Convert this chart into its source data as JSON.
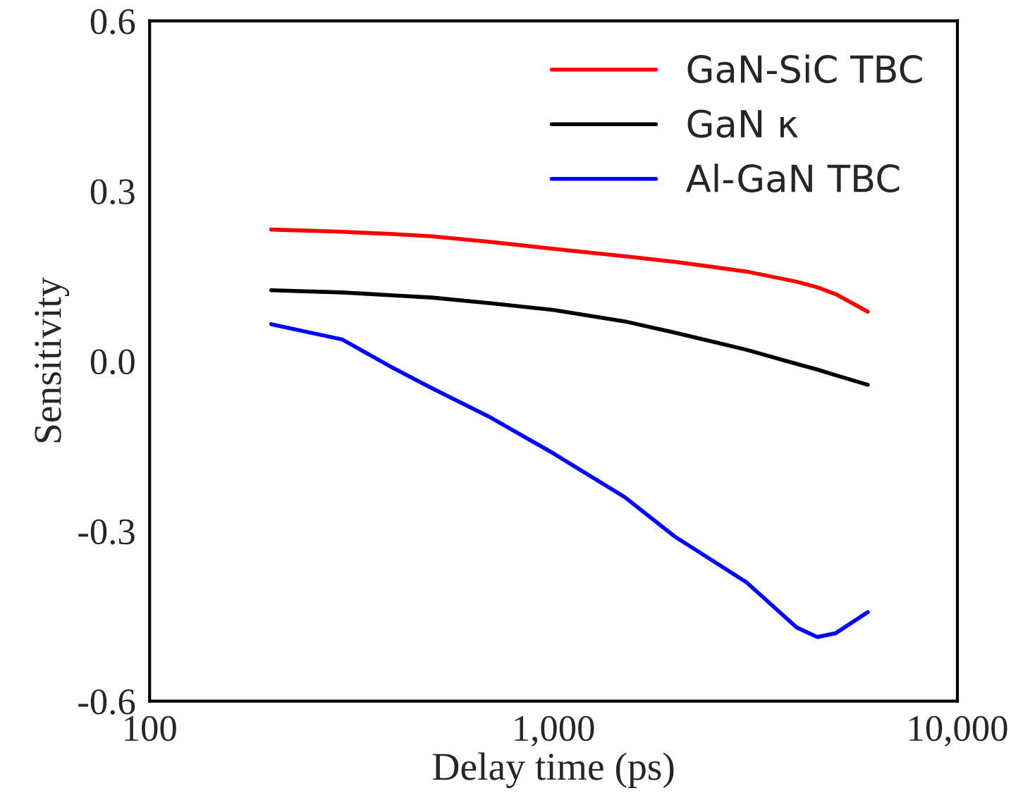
{
  "chart_data": {
    "type": "line",
    "xlabel": "Delay time (ps)",
    "ylabel": "Sensitivity",
    "log": "x",
    "xlim": [
      100,
      10000
    ],
    "xticks": [
      {
        "value": 100,
        "label": "100"
      },
      {
        "value": 1000,
        "label": "1,000"
      },
      {
        "value": 10000,
        "label": "10,000"
      }
    ],
    "ylim": [
      -0.6,
      0.6
    ],
    "yticks": [
      {
        "value": -0.6,
        "label": "-0.6"
      },
      {
        "value": -0.3,
        "label": "-0.3"
      },
      {
        "value": 0.0,
        "label": "0.0"
      },
      {
        "value": 0.3,
        "label": "0.3"
      },
      {
        "value": 0.6,
        "label": "0.6"
      }
    ],
    "grid": false,
    "legend": "top right",
    "x": [
      200,
      300,
      400,
      500,
      700,
      1000,
      1500,
      2000,
      3000,
      4000,
      4500,
      5000,
      6000
    ],
    "series": [
      {
        "name": "GaN-SiC TBC",
        "color": "#ff0000",
        "values": [
          0.232,
          0.228,
          0.224,
          0.22,
          0.21,
          0.198,
          0.185,
          0.175,
          0.158,
          0.14,
          0.13,
          0.118,
          0.087
        ]
      },
      {
        "name": "GaN κ",
        "color": "#000000",
        "values": [
          0.125,
          0.121,
          0.116,
          0.112,
          0.102,
          0.09,
          0.07,
          0.05,
          0.02,
          -0.005,
          -0.015,
          -0.025,
          -0.042
        ]
      },
      {
        "name": "Al-GaN TBC",
        "color": "#0000ff",
        "values": [
          0.065,
          0.038,
          -0.012,
          -0.048,
          -0.1,
          -0.163,
          -0.24,
          -0.31,
          -0.39,
          -0.47,
          -0.487,
          -0.48,
          -0.443
        ]
      }
    ]
  }
}
